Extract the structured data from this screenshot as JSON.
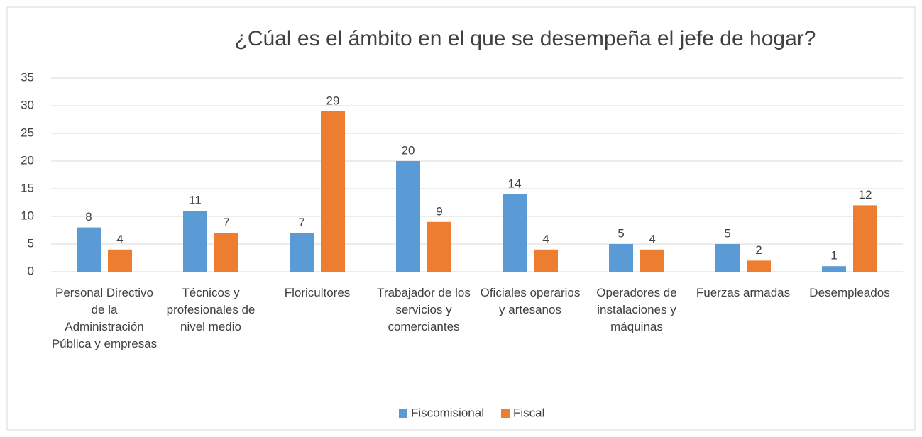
{
  "chart_data": {
    "type": "bar",
    "title": "¿Cúal es el ámbito en el que se desempeña el jefe de hogar?",
    "categories": [
      "Personal Directivo de la Administración Pública y empresas",
      "Técnicos y profesionales de nivel medio",
      "Floricultores",
      "Trabajador de los servicios y comerciantes",
      "Oficiales operarios y artesanos",
      "Operadores de instalaciones y máquinas",
      "Fuerzas armadas",
      "Desempleados"
    ],
    "series": [
      {
        "name": "Fiscomisional",
        "color": "#5b9bd5",
        "values": [
          8,
          11,
          7,
          20,
          14,
          5,
          5,
          1
        ]
      },
      {
        "name": "Fiscal",
        "color": "#ed7d31",
        "values": [
          4,
          7,
          29,
          9,
          4,
          4,
          2,
          12
        ]
      }
    ],
    "ylim": [
      0,
      35
    ],
    "yticks": [
      0,
      5,
      10,
      15,
      20,
      25,
      30,
      35
    ],
    "grid": true,
    "legend": "bottom"
  }
}
